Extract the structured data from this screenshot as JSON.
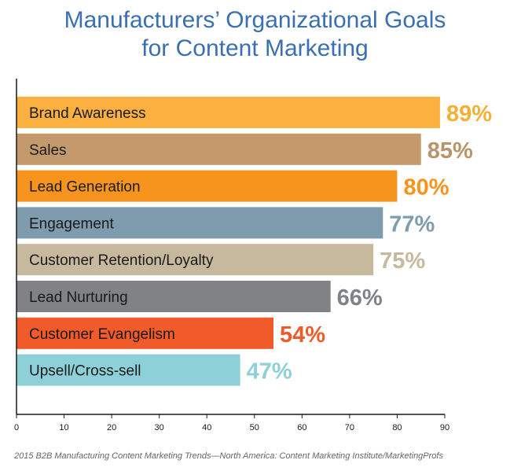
{
  "chart_data": {
    "type": "bar",
    "orientation": "horizontal",
    "title_lines": [
      "Manufacturers’ Organizational Goals",
      "for Content Marketing"
    ],
    "categories": [
      "Brand Awareness",
      "Sales",
      "Lead Generation",
      "Engagement",
      "Customer Retention/Loyalty",
      "Lead Nurturing",
      "Customer Evangelism",
      "Upsell/Cross-sell"
    ],
    "values": [
      89,
      85,
      80,
      77,
      75,
      66,
      54,
      47
    ],
    "value_labels": [
      "89%",
      "85%",
      "80%",
      "77%",
      "75%",
      "66%",
      "54%",
      "47%"
    ],
    "bar_colors": [
      "#fbb040",
      "#c49a6c",
      "#f7941d",
      "#7f9caf",
      "#c6b99e",
      "#808285",
      "#f15a29",
      "#8ed0d8"
    ],
    "label_colors": [
      "#f2b134",
      "#b89468",
      "#f7941d",
      "#7f9caf",
      "#c6b99e",
      "#808285",
      "#f15a29",
      "#8ed0d8"
    ],
    "xlim": [
      0,
      90
    ],
    "xticks": [
      0,
      10,
      20,
      30,
      40,
      50,
      60,
      70,
      80,
      90
    ],
    "grid": false,
    "legend": "none"
  },
  "source": "2015 B2B Manufacturing Content Marketing Trends—North America: Content Marketing Institute/MarketingProfs"
}
